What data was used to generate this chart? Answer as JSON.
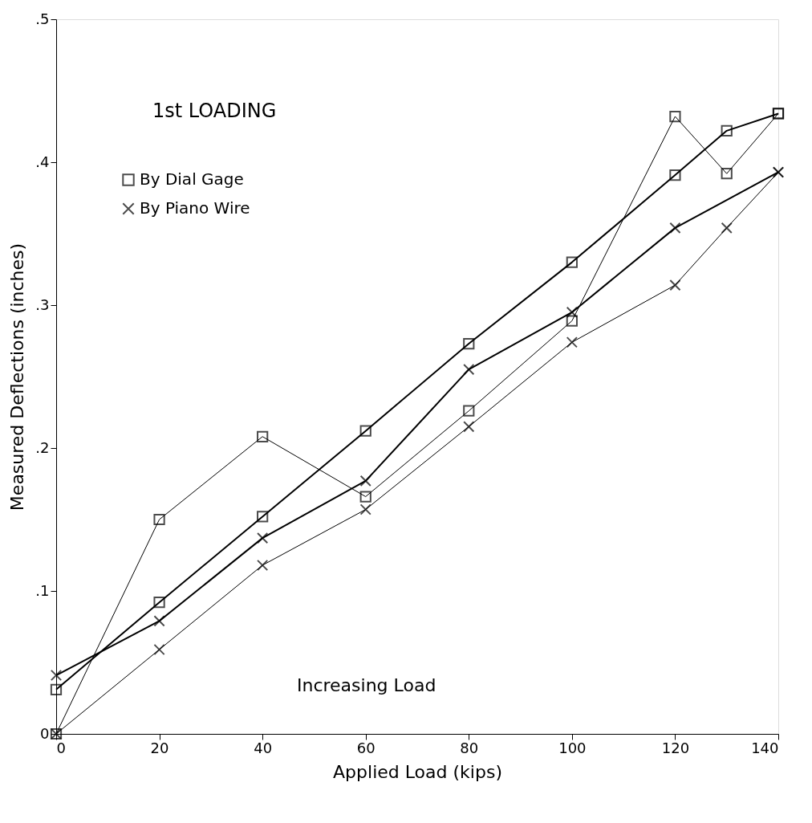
{
  "chart_data": {
    "type": "line",
    "xlabel": "Applied Load (kips)",
    "ylabel": "Measured Deflections (inches)",
    "annotations": [
      "1st LOADING",
      "Increasing Load"
    ],
    "xlim": [
      0,
      140
    ],
    "ylim": [
      0,
      0.5
    ],
    "xticks": [
      0,
      20,
      40,
      60,
      80,
      100,
      120,
      140
    ],
    "yticks": [
      0,
      {
        "value": 0.1,
        "label": ".1"
      },
      {
        "value": 0.2,
        "label": ".2"
      },
      {
        "value": 0.3,
        "label": ".3"
      },
      {
        "value": 0.4,
        "label": ".4"
      },
      {
        "value": 0.5,
        "label": ".5"
      }
    ],
    "grid": false,
    "legend": "top left",
    "line_style": "solid",
    "series": [
      {
        "name": "By Dial Gage",
        "color": "#000000",
        "marker": "square",
        "x": [
          140,
          130,
          120,
          100,
          80,
          60,
          40,
          20,
          0
        ],
        "values": [
          0.434,
          0.422,
          0.391,
          0.33,
          0.273,
          0.212,
          0.152,
          0.092,
          0.031
        ]
      },
      {
        "name": "By Piano Wire",
        "color": "#000000",
        "marker": "cross",
        "x": [
          140,
          120,
          100,
          80,
          60,
          40,
          20,
          0
        ],
        "values": [
          0.393,
          0.354,
          0.295,
          0.255,
          0.177,
          0.137,
          0.079,
          0.041
        ]
      },
      {
        "color": "#000000",
        "marker": "square",
        "x": [
          0,
          20,
          40,
          60,
          80,
          100,
          120,
          130,
          140
        ],
        "values": [
          0,
          0.15,
          0.208,
          0.166,
          0.226,
          0.289,
          0.432,
          0.392,
          0.434
        ]
      },
      {
        "color": "#000000",
        "marker": "cross",
        "x": [
          0,
          20,
          40,
          60,
          80,
          100,
          120,
          130,
          140
        ],
        "values": [
          0,
          0.059,
          0.118,
          0.157,
          0.215,
          0.274,
          0.314,
          0.354,
          0.393
        ]
      }
    ]
  }
}
